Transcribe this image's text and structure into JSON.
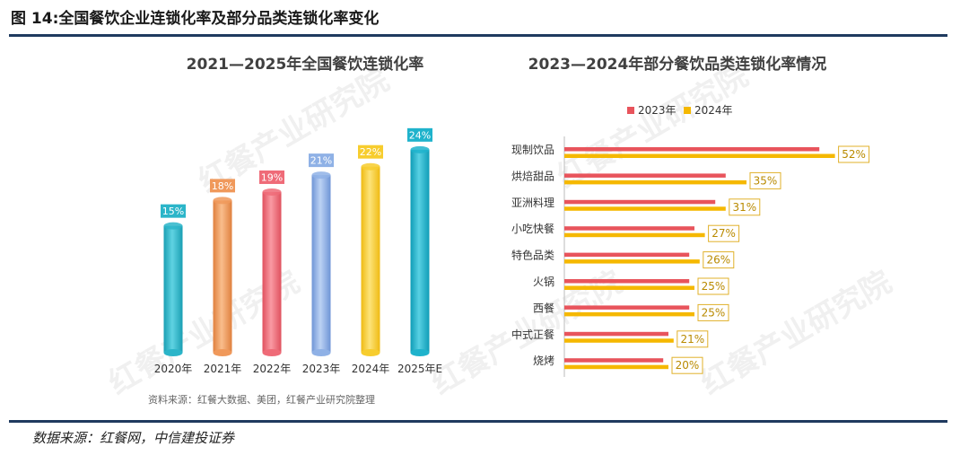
{
  "figure": {
    "title": "图 14:全国餐饮企业连锁化率及部分品类连锁化率变化",
    "source": "数据来源：红餐网，中信建投证券",
    "watermark": "红餐产业研究院"
  },
  "colors": {
    "rule": "#1f3a5f",
    "series_2023": "#e8545c",
    "series_2024": "#f5b800"
  },
  "chart_data": [
    {
      "type": "bar",
      "title": "2021—2025年全国餐饮连锁化率",
      "categories": [
        "2020年",
        "2021年",
        "2022年",
        "2023年",
        "2024年",
        "2025年E"
      ],
      "values": [
        15,
        18,
        19,
        21,
        22,
        24
      ],
      "labels": [
        "15%",
        "18%",
        "19%",
        "21%",
        "22%",
        "24%"
      ],
      "unit": "%",
      "bar_colors": [
        "#2bb5c9",
        "#f0995b",
        "#ef6b78",
        "#8fb1e6",
        "#f7cd2e",
        "#1fb3cc"
      ],
      "xlabel": "",
      "ylabel": "",
      "ylim": [
        0,
        26
      ],
      "note": "资料来源：红餐大数据、美团，红餐产业研究院整理"
    },
    {
      "type": "bar",
      "orientation": "horizontal",
      "title": "2023—2024年部分餐饮品类连锁化率情况",
      "categories": [
        "现制饮品",
        "烘焙甜品",
        "亚洲料理",
        "小吃快餐",
        "特色品类",
        "火锅",
        "西餐",
        "中式正餐",
        "烧烤"
      ],
      "series": [
        {
          "name": "2023年",
          "values": [
            49,
            31,
            29,
            25,
            24,
            24,
            24,
            20,
            19
          ]
        },
        {
          "name": "2024年",
          "values": [
            52,
            35,
            31,
            27,
            26,
            25,
            25,
            21,
            20
          ]
        }
      ],
      "labels": [
        "52%",
        "35%",
        "31%",
        "27%",
        "26%",
        "25%",
        "25%",
        "21%",
        "20%"
      ],
      "legend_position": "top",
      "xlim": [
        0,
        60
      ]
    }
  ]
}
